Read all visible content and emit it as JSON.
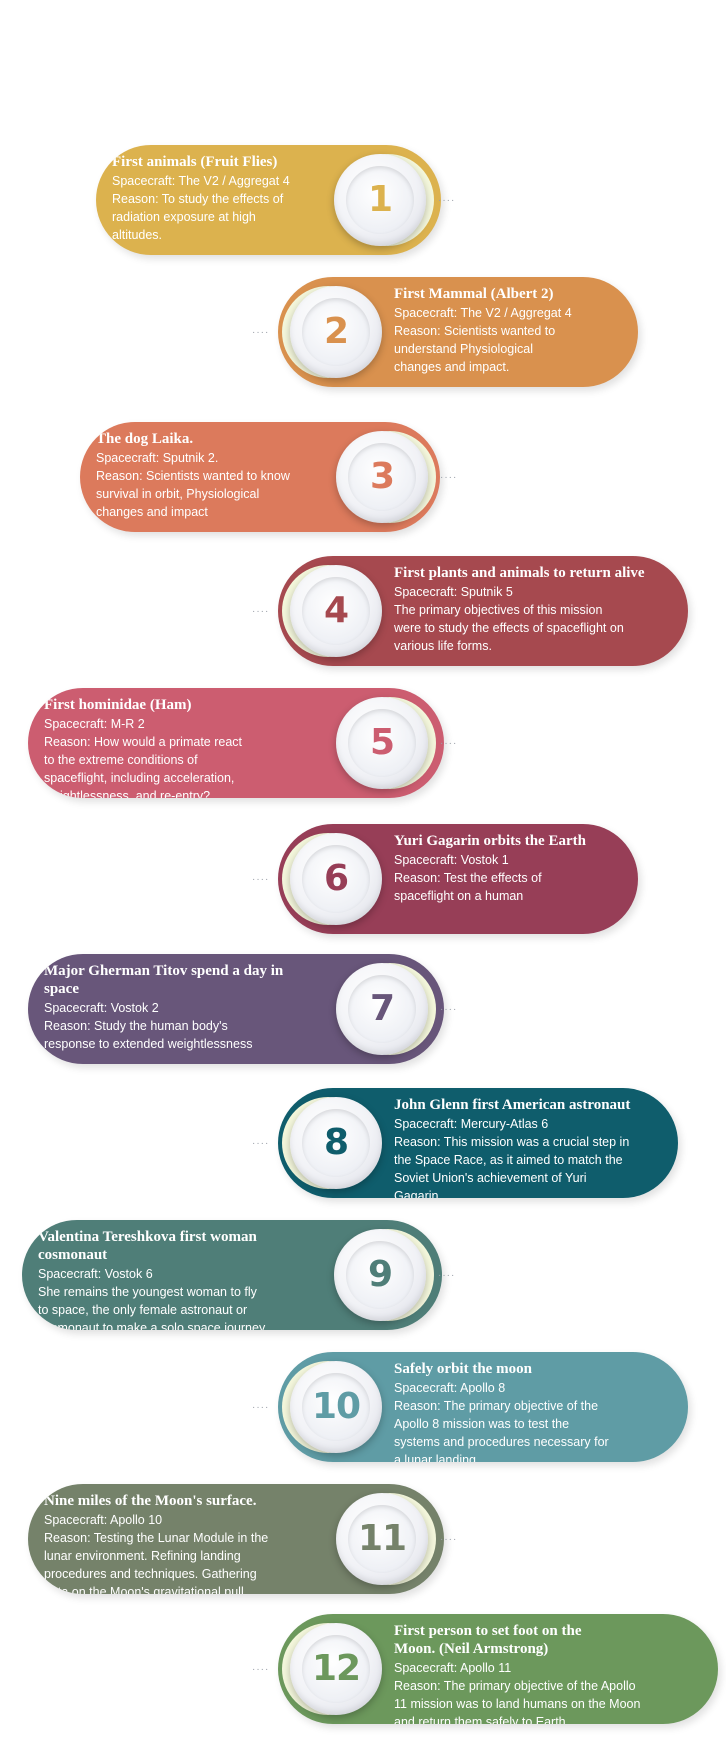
{
  "items": [
    {
      "number": "1",
      "side": "left",
      "color": "#dcb24e",
      "title_lines": [
        "First animals (Fruit Flies)"
      ],
      "body_lines": [
        "Spacecraft: The V2 / Aggregat 4",
        "Reason: To study the effects of",
        "radiation exposure at high",
        "altitudes."
      ]
    },
    {
      "number": "2",
      "side": "right",
      "color": "#d9914e",
      "title_lines": [
        "First Mammal (Albert 2)"
      ],
      "body_lines": [
        "Spacecraft: The V2 / Aggregat 4",
        "Reason: Scientists wanted to",
        "understand Physiological",
        "changes and impact."
      ]
    },
    {
      "number": "3",
      "side": "left",
      "color": "#dc7a5c",
      "title_lines": [
        "The dog Laika."
      ],
      "body_lines": [
        "Spacecraft: Sputnik 2.",
        "Reason: Scientists wanted to know",
        "survival in orbit, Physiological",
        "changes and impact"
      ]
    },
    {
      "number": "4",
      "side": "right",
      "color": "#a6494f",
      "title_lines": [
        "First plants and animals to return alive"
      ],
      "body_lines": [
        "Spacecraft: Sputnik 5",
        "The primary objectives of this mission",
        "were to study the effects of spaceflight on",
        "various life forms."
      ]
    },
    {
      "number": "5",
      "side": "left",
      "color": "#cc5d70",
      "title_lines": [
        "First hominidae (Ham)"
      ],
      "body_lines": [
        "Spacecraft: M-R 2",
        "Reason: How would a primate react",
        "to the extreme conditions of",
        "spaceflight, including acceleration,",
        "weightlessness, and re-entry?"
      ]
    },
    {
      "number": "6",
      "side": "right",
      "color": "#973e57",
      "title_lines": [
        "Yuri Gagarin orbits the Earth"
      ],
      "body_lines": [
        "Spacecraft: Vostok 1",
        "Reason: Test the effects of",
        "spaceflight on a human"
      ]
    },
    {
      "number": "7",
      "side": "left",
      "color": "#68567a",
      "title_lines": [
        "Major Gherman Titov spend a day in",
        "space"
      ],
      "body_lines": [
        "Spacecraft: Vostok 2",
        "Reason: Study the human body's",
        "response to extended weightlessness"
      ]
    },
    {
      "number": "8",
      "side": "right",
      "color": "#0f5d6c",
      "title_lines": [
        "John Glenn  first American astronaut"
      ],
      "body_lines": [
        "Spacecraft: Mercury-Atlas 6",
        "Reason: This mission was a crucial step in",
        "the Space Race, as it aimed to match the",
        "Soviet Union's achievement of Yuri",
        "Gagarin,"
      ]
    },
    {
      "number": "9",
      "side": "left",
      "color": "#4f7e78",
      "title_lines": [
        "Valentina Tereshkova first woman",
        "cosmonaut"
      ],
      "body_lines": [
        "Spacecraft: Vostok 6",
        "She remains the youngest woman to fly",
        "to space, the only female astronaut or",
        "cosmonaut to make a solo space journey"
      ]
    },
    {
      "number": "10",
      "side": "right",
      "color": "#5f9ca5",
      "title_lines": [
        "Safely orbit the moon"
      ],
      "body_lines": [
        "Spacecraft: Apollo 8",
        "Reason: The primary objective of the",
        "Apollo 8 mission was to test the",
        "systems and procedures necessary for",
        "a lunar landing."
      ]
    },
    {
      "number": "11",
      "side": "left",
      "color": "#75826a",
      "title_lines": [
        "Nine miles of the Moon's surface."
      ],
      "body_lines": [
        "Spacecraft: Apollo 10",
        "Reason: Testing the Lunar Module in the",
        "lunar environment. Refining landing",
        "procedures and techniques. Gathering",
        "data on the Moon's gravitational pull."
      ]
    },
    {
      "number": "12",
      "side": "right",
      "color": "#6c985c",
      "title_lines": [
        "First person to set foot on the",
        "Moon. (Neil Armstrong)"
      ],
      "body_lines": [
        "Spacecraft: Apollo 11",
        "Reason: The primary objective of the Apollo",
        "11 mission was to land humans on the Moon",
        "and return them safely to Earth."
      ]
    }
  ]
}
